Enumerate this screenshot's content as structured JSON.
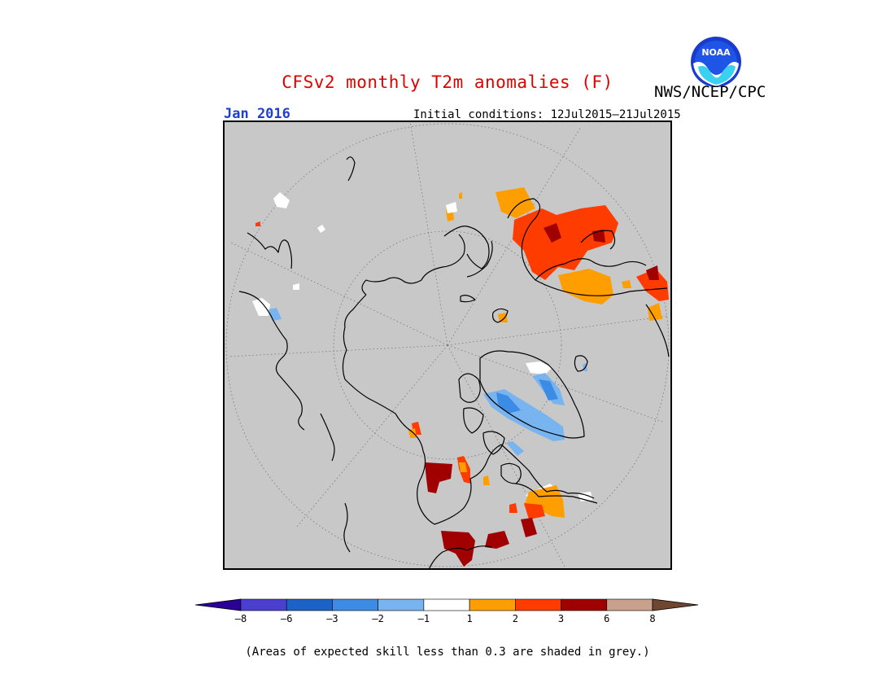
{
  "title": "CFSv2 monthly T2m anomalies (F)",
  "agency": "NWS/NCEP/CPC",
  "logo_text": "NOAA",
  "month": "Jan 2016",
  "initial_conditions": "Initial conditions: 12Jul2015–21Jul2015",
  "footnote": "(Areas of expected skill less than 0.3 are shaded in grey.)",
  "colors": {
    "grey_background": "#c8c8c8",
    "title_red": "#e00000",
    "month_blue": "#1f3fd0"
  },
  "legend": {
    "ticks": [
      "–8",
      "–6",
      "–3",
      "–2",
      "–1",
      "1",
      "2",
      "3",
      "6",
      "8"
    ],
    "bin_colors": [
      "#2a0096",
      "#4a3fd0",
      "#1a64c8",
      "#3c8ce6",
      "#78b4f0",
      "#ffffff",
      "#ff9e00",
      "#ff3c00",
      "#a00000",
      "#c8a08c",
      "#6e4632"
    ]
  }
}
